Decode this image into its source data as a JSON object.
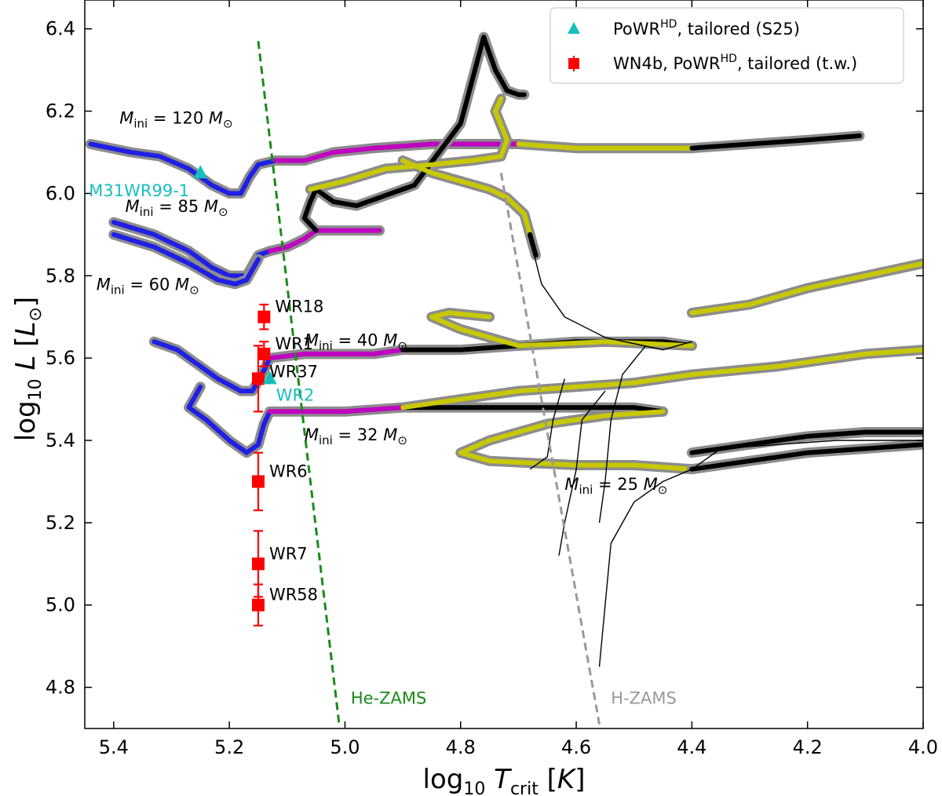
{
  "chart_data": {
    "type": "scatter",
    "xlabel": "log10 T_crit [K]",
    "ylabel": "log10 L [L_sun]",
    "xlim": [
      5.45,
      4.0
    ],
    "ylim": [
      4.7,
      6.47
    ],
    "x_ticks": [
      "5.4",
      "5.2",
      "5.0",
      "4.8",
      "4.6",
      "4.4",
      "4.2",
      "4.0"
    ],
    "x_tick_values": [
      5.4,
      5.2,
      5.0,
      4.8,
      4.6,
      4.4,
      4.2,
      4.0
    ],
    "y_ticks": [
      "6.4",
      "6.2",
      "6.0",
      "5.8",
      "5.6",
      "5.4",
      "5.2",
      "5.0",
      "4.8"
    ],
    "y_tick_values": [
      6.4,
      6.2,
      6.0,
      5.8,
      5.6,
      5.4,
      5.2,
      5.0,
      4.8
    ],
    "legend": {
      "position": "top-right",
      "entries": [
        {
          "label": "PoWR^HD, tailored (S25)",
          "marker": "triangle",
          "color": "#17bebe"
        },
        {
          "label": "WN4b, PoWR^HD, tailored (t.w.)",
          "marker": "square-errorbar",
          "color": "#ff0000"
        }
      ]
    },
    "series": [
      {
        "name": "WN4b, PoWR^HD, tailored (t.w.)",
        "marker": "square",
        "color": "#ff0000",
        "points": [
          {
            "label": "WR18",
            "x": 5.14,
            "y": 5.7,
            "yerr": 0.03
          },
          {
            "label": "WR1",
            "x": 5.14,
            "y": 5.61,
            "yerr": 0.03
          },
          {
            "label": "WR37",
            "x": 5.15,
            "y": 5.55,
            "yerr": 0.08
          },
          {
            "label": "WR6",
            "x": 5.15,
            "y": 5.3,
            "yerr": 0.07
          },
          {
            "label": "WR7",
            "x": 5.15,
            "y": 5.1,
            "yerr": 0.08
          },
          {
            "label": "WR58",
            "x": 5.15,
            "y": 5.0,
            "yerr": 0.05
          }
        ]
      },
      {
        "name": "PoWR^HD, tailored (S25)",
        "marker": "triangle",
        "color": "#17bebe",
        "points": [
          {
            "label": "M31WR99-1",
            "x": 5.25,
            "y": 6.05
          },
          {
            "label": "WR2",
            "x": 5.13,
            "y": 5.55
          }
        ]
      }
    ],
    "reference_lines": [
      {
        "label": "He-ZAMS",
        "color": "#1a8a1a",
        "style": "dashed",
        "x": [
          5.15,
          5.01
        ],
        "y": [
          6.37,
          4.71
        ]
      },
      {
        "label": "H-ZAMS",
        "color": "#999999",
        "style": "dashed",
        "x": [
          4.73,
          4.56
        ],
        "y": [
          6.05,
          4.71
        ]
      }
    ],
    "annotations": [
      {
        "text": "M_ini = 120 M_sun"
      },
      {
        "text": "M_ini = 85 M_sun"
      },
      {
        "text": "M_ini = 60 M_sun"
      },
      {
        "text": "M_ini = 40 M_sun"
      },
      {
        "text": "M_ini = 32 M_sun"
      },
      {
        "text": "M_ini = 25 M_sun"
      }
    ],
    "tracks": [
      {
        "name": "M_ini = 120 M_sun",
        "segments": [
          {
            "color": "#1f1fe6",
            "points": [
              [
                5.44,
                6.12
              ],
              [
                5.37,
                6.1
              ],
              [
                5.32,
                6.09
              ],
              [
                5.27,
                6.06
              ],
              [
                5.23,
                6.02
              ],
              [
                5.2,
                6.0
              ],
              [
                5.18,
                6.0
              ],
              [
                5.165,
                6.04
              ],
              [
                5.15,
                6.07
              ],
              [
                5.12,
                6.08
              ]
            ]
          },
          {
            "color": "#c000c0",
            "points": [
              [
                5.12,
                6.08
              ],
              [
                5.07,
                6.08
              ],
              [
                5.02,
                6.1
              ],
              [
                4.95,
                6.11
              ],
              [
                4.85,
                6.12
              ],
              [
                4.75,
                6.12
              ],
              [
                4.7,
                6.12
              ]
            ]
          },
          {
            "color": "#c8c800",
            "points": [
              [
                4.7,
                6.12
              ],
              [
                4.6,
                6.11
              ],
              [
                4.5,
                6.11
              ],
              [
                4.4,
                6.11
              ]
            ]
          },
          {
            "color": "#000000",
            "points": [
              [
                4.4,
                6.11
              ],
              [
                4.3,
                6.12
              ],
              [
                4.2,
                6.13
              ],
              [
                4.11,
                6.14
              ]
            ]
          }
        ]
      },
      {
        "name": "M_ini = 85 M_sun",
        "segments": [
          {
            "color": "#1f1fe6",
            "points": [
              [
                5.4,
                5.93
              ],
              [
                5.33,
                5.9
              ],
              [
                5.27,
                5.86
              ],
              [
                5.23,
                5.82
              ],
              [
                5.2,
                5.8
              ],
              [
                5.17,
                5.8
              ],
              [
                5.15,
                5.85
              ],
              [
                5.13,
                5.86
              ]
            ]
          },
          {
            "color": "#c000c0",
            "points": [
              [
                5.13,
                5.86
              ],
              [
                5.1,
                5.87
              ],
              [
                5.07,
                5.89
              ],
              [
                5.05,
                5.91
              ],
              [
                5.0,
                5.91
              ],
              [
                4.94,
                5.91
              ]
            ]
          },
          {
            "color": "#000000",
            "points": [
              [
                5.05,
                5.91
              ],
              [
                5.07,
                5.94
              ],
              [
                5.06,
                5.98
              ],
              [
                5.05,
                6.01
              ],
              [
                5.02,
                5.98
              ],
              [
                4.98,
                5.97
              ],
              [
                4.88,
                6.02
              ],
              [
                4.8,
                6.17
              ],
              [
                4.76,
                6.38
              ],
              [
                4.74,
                6.3
              ],
              [
                4.72,
                6.25
              ],
              [
                4.7,
                6.24
              ],
              [
                4.69,
                6.24
              ]
            ]
          },
          {
            "color": "#c8c800",
            "points": [
              [
                5.06,
                6.01
              ],
              [
                5.0,
                6.03
              ],
              [
                4.93,
                6.06
              ],
              [
                4.85,
                6.07
              ],
              [
                4.78,
                6.08
              ],
              [
                4.73,
                6.09
              ],
              [
                4.72,
                6.13
              ],
              [
                4.74,
                6.2
              ],
              [
                4.73,
                6.23
              ]
            ]
          },
          {
            "color": "#c8c800",
            "points": [
              [
                4.9,
                6.08
              ],
              [
                4.85,
                6.05
              ],
              [
                4.8,
                6.03
              ],
              [
                4.75,
                6.01
              ],
              [
                4.72,
                5.99
              ],
              [
                4.69,
                5.95
              ],
              [
                4.68,
                5.9
              ]
            ]
          },
          {
            "color": "#000000",
            "points": [
              [
                4.68,
                5.9
              ],
              [
                4.67,
                5.85
              ]
            ]
          }
        ]
      },
      {
        "name": "M_ini = 60 M_sun",
        "segments": [
          {
            "color": "#1f1fe6",
            "points": [
              [
                5.4,
                5.9
              ],
              [
                5.33,
                5.87
              ],
              [
                5.27,
                5.83
              ],
              [
                5.22,
                5.79
              ],
              [
                5.19,
                5.78
              ],
              [
                5.17,
                5.79
              ],
              [
                5.15,
                5.84
              ]
            ]
          }
        ]
      },
      {
        "name": "M_ini = 40 M_sun",
        "segments": [
          {
            "color": "#1f1fe6",
            "points": [
              [
                5.33,
                5.64
              ],
              [
                5.29,
                5.62
              ],
              [
                5.26,
                5.59
              ],
              [
                5.22,
                5.55
              ],
              [
                5.18,
                5.52
              ],
              [
                5.16,
                5.52
              ],
              [
                5.14,
                5.57
              ],
              [
                5.13,
                5.6
              ]
            ]
          },
          {
            "color": "#c000c0",
            "points": [
              [
                5.13,
                5.6
              ],
              [
                5.07,
                5.61
              ],
              [
                5.0,
                5.61
              ],
              [
                4.95,
                5.61
              ],
              [
                4.9,
                5.62
              ]
            ]
          },
          {
            "color": "#000000",
            "points": [
              [
                4.9,
                5.62
              ],
              [
                4.8,
                5.62
              ],
              [
                4.7,
                5.63
              ],
              [
                4.6,
                5.64
              ],
              [
                4.45,
                5.64
              ],
              [
                4.4,
                5.63
              ]
            ]
          },
          {
            "color": "#c8c800",
            "points": [
              [
                4.4,
                5.63
              ],
              [
                4.55,
                5.64
              ],
              [
                4.7,
                5.63
              ],
              [
                4.8,
                5.67
              ],
              [
                4.85,
                5.7
              ],
              [
                4.82,
                5.71
              ],
              [
                4.75,
                5.7
              ]
            ]
          },
          {
            "color": "#c8c800",
            "points": [
              [
                4.4,
                5.71
              ],
              [
                4.3,
                5.73
              ],
              [
                4.2,
                5.77
              ],
              [
                4.1,
                5.8
              ],
              [
                4.0,
                5.83
              ]
            ]
          }
        ]
      },
      {
        "name": "M_ini = 32 M_sun",
        "segments": [
          {
            "color": "#1f1fe6",
            "points": [
              [
                5.25,
                5.53
              ],
              [
                5.27,
                5.48
              ],
              [
                5.24,
                5.45
              ],
              [
                5.2,
                5.4
              ],
              [
                5.17,
                5.37
              ],
              [
                5.15,
                5.39
              ],
              [
                5.14,
                5.44
              ],
              [
                5.13,
                5.47
              ]
            ]
          },
          {
            "color": "#c000c0",
            "points": [
              [
                5.13,
                5.47
              ],
              [
                5.07,
                5.47
              ],
              [
                5.0,
                5.47
              ],
              [
                4.9,
                5.48
              ]
            ]
          },
          {
            "color": "#000000",
            "points": [
              [
                4.9,
                5.48
              ],
              [
                4.8,
                5.48
              ],
              [
                4.7,
                5.48
              ],
              [
                4.6,
                5.48
              ],
              [
                4.5,
                5.48
              ],
              [
                4.45,
                5.47
              ]
            ]
          },
          {
            "color": "#c8c800",
            "points": [
              [
                4.45,
                5.47
              ],
              [
                4.55,
                5.46
              ],
              [
                4.65,
                5.44
              ],
              [
                4.75,
                5.4
              ],
              [
                4.8,
                5.37
              ],
              [
                4.75,
                5.35
              ],
              [
                4.6,
                5.34
              ],
              [
                4.5,
                5.34
              ],
              [
                4.4,
                5.33
              ]
            ]
          },
          {
            "color": "#c8c800",
            "points": [
              [
                4.9,
                5.48
              ],
              [
                4.8,
                5.5
              ],
              [
                4.7,
                5.52
              ],
              [
                4.6,
                5.53
              ],
              [
                4.5,
                5.54
              ],
              [
                4.4,
                5.56
              ]
            ]
          },
          {
            "color": "#c8c800",
            "points": [
              [
                4.4,
                5.56
              ],
              [
                4.25,
                5.58
              ],
              [
                4.1,
                5.61
              ],
              [
                4.0,
                5.62
              ]
            ]
          }
        ]
      },
      {
        "name": "M_ini = 25 M_sun",
        "segments": [
          {
            "color": "#000000",
            "points": [
              [
                4.4,
                5.33
              ],
              [
                4.3,
                5.35
              ],
              [
                4.2,
                5.37
              ],
              [
                4.1,
                5.38
              ],
              [
                4.0,
                5.39
              ]
            ]
          },
          {
            "color": "#000000",
            "points": [
              [
                4.4,
                5.37
              ],
              [
                4.3,
                5.39
              ],
              [
                4.2,
                5.41
              ],
              [
                4.1,
                5.42
              ],
              [
                4.0,
                5.42
              ]
            ]
          }
        ]
      }
    ]
  }
}
